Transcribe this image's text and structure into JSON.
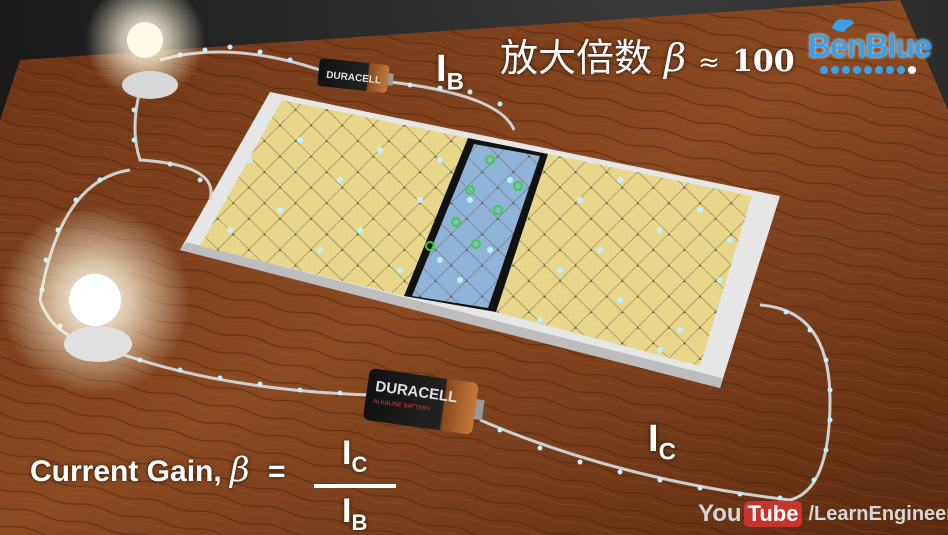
{
  "scene": {
    "battery_top_label": "DURACELL",
    "battery_bottom_label": "DURACELL",
    "battery_bottom_sublabel": "ALKALINE BATTERY"
  },
  "labels": {
    "ib_main": "I",
    "ib_sub": "B",
    "ic_main": "I",
    "ic_sub": "C",
    "gain_title_cn": "放大倍数",
    "gain_title_beta": "β",
    "gain_title_approx": "≈",
    "gain_title_value": "100",
    "formula_text": "Current Gain,",
    "formula_beta": "β",
    "formula_eq": "=",
    "frac_num_main": "I",
    "frac_num_sub": "C",
    "frac_den_main": "I",
    "frac_den_sub": "B"
  },
  "branding": {
    "logo_text": "BenBlue",
    "yt_you": "You",
    "yt_tube": "Tube",
    "yt_channel": "/LearnEngineering"
  },
  "colors": {
    "table_wood": "#7a3d1a",
    "n_region": "#e8d68a",
    "p_region": "#8fb3d9",
    "electron": "#bff0ff",
    "hole": "#3ad23a",
    "logo_blue": "#3aa0e8"
  }
}
